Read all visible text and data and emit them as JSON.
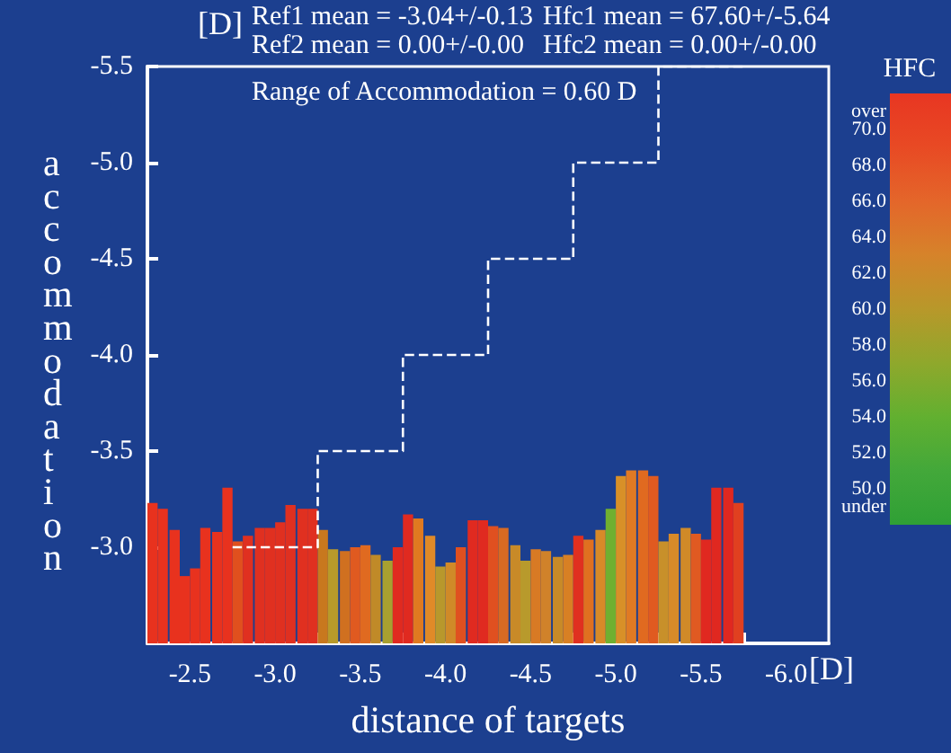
{
  "chart_data": {
    "type": "bar",
    "xlabel": "distance of targets",
    "ylabel": "accommodation",
    "clabel": "HFC",
    "annotations": [
      "[D]",
      "Ref1 mean = -3.04+/-0.13",
      "Hfc1 mean = 67.60+/-5.64",
      "Ref2 mean = 0.00+/-0.00",
      "Hfc2 mean = 0.00+/-0.00",
      "Range of Accommodation = 0.60 D",
      "[D]"
    ],
    "x": [
      -2.28,
      -2.34,
      -2.41,
      -2.47,
      -2.53,
      -2.59,
      -2.66,
      -2.72,
      -2.78,
      -2.84,
      -2.91,
      -2.97,
      -3.03,
      -3.09,
      -3.16,
      -3.22,
      -3.28,
      -3.34,
      -3.41,
      -3.47,
      -3.53,
      -3.59,
      -3.66,
      -3.72,
      -3.78,
      -3.84,
      -3.91,
      -3.97,
      -4.03,
      -4.09,
      -4.16,
      -4.22,
      -4.28,
      -4.34,
      -4.41,
      -4.47,
      -4.53,
      -4.59,
      -4.66,
      -4.72,
      -4.78,
      -4.84,
      -4.91,
      -4.97,
      -5.03,
      -5.09,
      -5.16,
      -5.22,
      -5.28,
      -5.34,
      -5.41,
      -5.47,
      -5.53,
      -5.59,
      -5.66,
      -5.72
    ],
    "values": [
      -3.23,
      -3.2,
      -3.09,
      -2.85,
      -2.89,
      -3.1,
      -3.08,
      -3.31,
      -3.03,
      -3.06,
      -3.1,
      -3.1,
      -3.13,
      -3.22,
      -3.2,
      -3.2,
      -3.09,
      -2.99,
      -2.98,
      -3.0,
      -3.01,
      -2.96,
      -2.93,
      -3.0,
      -3.17,
      -3.15,
      -3.06,
      -2.9,
      -2.92,
      -3.0,
      -3.14,
      -3.14,
      -3.11,
      -3.1,
      -3.01,
      -2.93,
      -2.99,
      -2.98,
      -2.95,
      -2.96,
      -3.06,
      -3.04,
      -3.09,
      -3.2,
      -3.37,
      -3.4,
      -3.4,
      -3.37,
      -3.03,
      -3.07,
      -3.1,
      -3.07,
      -3.04,
      -3.31,
      -3.31,
      -3.23
    ],
    "colors": [
      "#e8321e",
      "#e8321e",
      "#e8321e",
      "#e8321e",
      "#e8321e",
      "#e8321e",
      "#e8321e",
      "#e8321e",
      "#e0501e",
      "#e03020",
      "#e03020",
      "#e03020",
      "#e03020",
      "#e03020",
      "#e03020",
      "#e03020",
      "#c8781e",
      "#b89a2a",
      "#d07020",
      "#e05a20",
      "#e06a20",
      "#c08a28",
      "#a8a030",
      "#e02a20",
      "#e02a20",
      "#e07a20",
      "#e08a28",
      "#b8982c",
      "#d08a28",
      "#e05020",
      "#e02a20",
      "#e02a20",
      "#e05020",
      "#d86a22",
      "#c88a28",
      "#b89a2c",
      "#d87a24",
      "#d0822a",
      "#c88a28",
      "#d88024",
      "#e03020",
      "#e07020",
      "#d88a28",
      "#70b030",
      "#d89028",
      "#e07a24",
      "#e06a20",
      "#e05a20",
      "#c8902a",
      "#d88a28",
      "#d08a28",
      "#e05a22",
      "#e02820",
      "#e02820",
      "#e02820",
      "#e04020"
    ],
    "series": [
      {
        "type": "line",
        "color": "#ffffff",
        "line_style": "dashed",
        "marker": "none",
        "x": [
          -2.75,
          -3.25,
          -3.25,
          -3.75,
          -3.75,
          -4.25,
          -4.25,
          -4.75,
          -4.75,
          -5.25,
          -5.25,
          -5.75
        ],
        "values": [
          -3.0,
          -3.0,
          -3.5,
          -3.5,
          -4.0,
          -4.0,
          -4.5,
          -4.5,
          -5.0,
          -5.0,
          -5.5,
          -5.5
        ]
      }
    ],
    "xlim": [
      -2.25,
      -6.25
    ],
    "xticks": [
      {
        "value": -2.5,
        "label": "-2.5"
      },
      {
        "value": -3,
        "label": "-3.0"
      },
      {
        "value": -3.5,
        "label": "-3.5"
      },
      {
        "value": -4,
        "label": "-4.0"
      },
      {
        "value": -4.5,
        "label": "-4.5"
      },
      {
        "value": -5,
        "label": "-5.0"
      },
      {
        "value": -5.5,
        "label": "-5.5"
      },
      {
        "value": -6,
        "label": "-6.0"
      },
      {
        "value": -3.25,
        "label": null
      },
      {
        "value": -3.75,
        "label": null
      },
      {
        "value": -4.25,
        "label": null
      },
      {
        "value": -4.75,
        "label": null
      },
      {
        "value": -5.25,
        "label": null
      },
      {
        "value": -5.75,
        "label": null
      }
    ],
    "ylim": [
      -2.5,
      -5.5
    ],
    "yticks": [
      -5.5,
      {
        "value": -5,
        "label": "-5.0"
      },
      -4.5,
      {
        "value": -4,
        "label": "-4.0"
      },
      -3.5,
      {
        "value": -3,
        "label": "-3.0"
      }
    ],
    "clim": [
      48,
      72
    ],
    "cticks": [
      {
        "value": 71,
        "label": "over"
      },
      {
        "value": 70,
        "label": "70.0"
      },
      {
        "value": 68,
        "label": "68.0"
      },
      {
        "value": 66,
        "label": "66.0"
      },
      {
        "value": 64,
        "label": "64.0"
      },
      {
        "value": 62,
        "label": "62.0"
      },
      {
        "value": 60,
        "label": "60.0"
      },
      {
        "value": 58,
        "label": "58.0"
      },
      {
        "value": 56,
        "label": "56.0"
      },
      {
        "value": 54,
        "label": "54.0"
      },
      {
        "value": 52,
        "label": "52.0"
      },
      {
        "value": 50,
        "label": "50.0"
      },
      {
        "value": 49,
        "label": "under"
      }
    ],
    "grid": false
  }
}
